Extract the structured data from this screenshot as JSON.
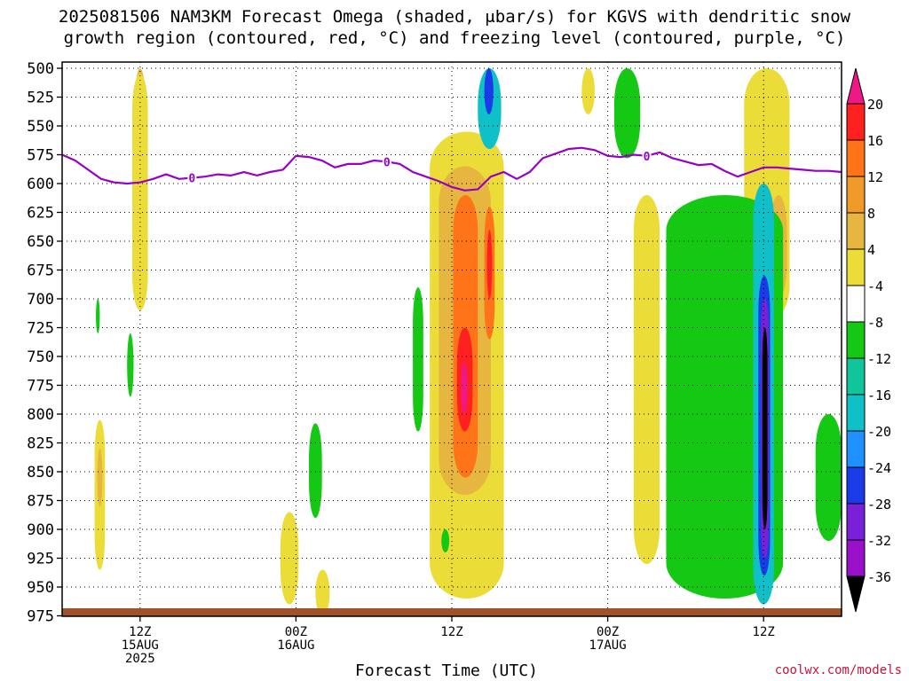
{
  "title_line1": "2025081506 NAM3KM Forecast Omega (shaded, μbar/s) for KGVS with dendritic snow",
  "title_line2": "growth region (contoured, red, °C) and freezing level (contoured, purple, °C)",
  "credit": "coolwx.com/models",
  "chart_data": {
    "type": "heatmap",
    "xlabel": "Forecast Time (UTC)",
    "ylabel": "",
    "x_ticks": [
      {
        "hour": 6,
        "lines": [
          "12Z",
          "15AUG",
          "2025"
        ]
      },
      {
        "hour": 18,
        "lines": [
          "00Z",
          "16AUG"
        ]
      },
      {
        "hour": 30,
        "lines": [
          "12Z"
        ]
      },
      {
        "hour": 42,
        "lines": [
          "00Z",
          "17AUG"
        ]
      },
      {
        "hour": 54,
        "lines": [
          "12Z"
        ]
      }
    ],
    "x_range_hours": [
      0,
      60
    ],
    "y_ticks": [
      500,
      525,
      550,
      575,
      600,
      625,
      650,
      675,
      700,
      725,
      750,
      775,
      800,
      825,
      850,
      875,
      900,
      925,
      950,
      975
    ],
    "y_range_hpa": [
      500,
      987
    ],
    "grid": true,
    "colorbar": {
      "labels": [
        "20",
        "16",
        "12",
        "8",
        "4",
        "-4",
        "-8",
        "-12",
        "-16",
        "-20",
        "-24",
        "-28",
        "-32",
        "-36"
      ],
      "colors": [
        "#ff2020",
        "#ff7418",
        "#f09a2a",
        "#e6b640",
        "#ecdc38",
        "#ffffff",
        "#14c814",
        "#12c49a",
        "#10c0c8",
        "#1e90ff",
        "#1a3ce8",
        "#7a20d8",
        "#9a10c8",
        "#a8a8a8"
      ],
      "top_cap_color": "#f01887",
      "bottom_cap_color": "#000000"
    },
    "freezing_level": {
      "label": "0",
      "color": "#9600c8",
      "hours": [
        0,
        1,
        2,
        3,
        4,
        5,
        6,
        7,
        8,
        9,
        10,
        11,
        12,
        13,
        14,
        15,
        16,
        17,
        18,
        19,
        20,
        21,
        22,
        23,
        24,
        25,
        26,
        27,
        28,
        29,
        30,
        31,
        32,
        33,
        34,
        35,
        36,
        37,
        38,
        39,
        40,
        41,
        42,
        43,
        44,
        45,
        46,
        47,
        48,
        49,
        50,
        51,
        52,
        53,
        54,
        55,
        56,
        57,
        58,
        59,
        60
      ],
      "pressure": [
        575,
        580,
        588,
        596,
        599,
        600,
        599,
        596,
        592,
        596,
        595,
        594,
        592,
        593,
        590,
        593,
        590,
        588,
        576,
        577,
        580,
        586,
        583,
        583,
        580,
        581,
        583,
        590,
        594,
        598,
        603,
        606,
        605,
        594,
        590,
        596,
        590,
        578,
        574,
        570,
        569,
        571,
        576,
        577,
        575,
        576,
        573,
        578,
        581,
        584,
        583,
        589,
        594,
        590,
        586,
        586,
        587,
        588,
        589,
        589,
        590
      ]
    },
    "omega_features": [
      {
        "value": 8,
        "x_hours": [
          5.6,
          6.4
        ],
        "p_top": 500,
        "p_bottom": 700
      },
      {
        "value": 4,
        "x_hours": [
          5.4,
          6.6
        ],
        "p_top": 505,
        "p_bottom": 710
      },
      {
        "value": 4,
        "x_hours": [
          2.5,
          3.3
        ],
        "p_top": 805,
        "p_bottom": 935
      },
      {
        "value": 8,
        "x_hours": [
          2.7,
          3.1
        ],
        "p_top": 830,
        "p_bottom": 880
      },
      {
        "value": -4,
        "x_hours": [
          2.6,
          2.9
        ],
        "p_top": 700,
        "p_bottom": 730
      },
      {
        "value": -4,
        "x_hours": [
          5.0,
          5.5
        ],
        "p_top": 730,
        "p_bottom": 785
      },
      {
        "value": 4,
        "x_hours": [
          16.8,
          18.2
        ],
        "p_top": 885,
        "p_bottom": 965
      },
      {
        "value": -4,
        "x_hours": [
          19.0,
          20.0
        ],
        "p_top": 808,
        "p_bottom": 890
      },
      {
        "value": 4,
        "x_hours": [
          19.5,
          20.6
        ],
        "p_top": 935,
        "p_bottom": 975
      },
      {
        "value": -4,
        "x_hours": [
          27.0,
          27.8
        ],
        "p_top": 690,
        "p_bottom": 815
      },
      {
        "value": 4,
        "x_hours": [
          28.3,
          34.0
        ],
        "p_top": 555,
        "p_bottom": 960
      },
      {
        "value": 8,
        "x_hours": [
          29.0,
          33.0
        ],
        "p_top": 585,
        "p_bottom": 870
      },
      {
        "value": 12,
        "x_hours": [
          30.1,
          32.0
        ],
        "p_top": 610,
        "p_bottom": 855
      },
      {
        "value": 16,
        "x_hours": [
          30.4,
          31.6
        ],
        "p_top": 725,
        "p_bottom": 815
      },
      {
        "value": 20,
        "x_hours": [
          30.7,
          31.2
        ],
        "p_top": 755,
        "p_bottom": 800
      },
      {
        "value": 12,
        "x_hours": [
          32.5,
          33.3
        ],
        "p_top": 620,
        "p_bottom": 735
      },
      {
        "value": 16,
        "x_hours": [
          32.7,
          33.1
        ],
        "p_top": 640,
        "p_bottom": 700
      },
      {
        "value": -12,
        "x_hours": [
          32.0,
          33.8
        ],
        "p_top": 500,
        "p_bottom": 570
      },
      {
        "value": -20,
        "x_hours": [
          32.5,
          33.2
        ],
        "p_top": 500,
        "p_bottom": 540
      },
      {
        "value": -4,
        "x_hours": [
          29.2,
          29.8
        ],
        "p_top": 900,
        "p_bottom": 920
      },
      {
        "value": -4,
        "x_hours": [
          42.5,
          44.5
        ],
        "p_top": 500,
        "p_bottom": 578
      },
      {
        "value": 4,
        "x_hours": [
          40.0,
          41.0
        ],
        "p_top": 500,
        "p_bottom": 540
      },
      {
        "value": 4,
        "x_hours": [
          44.0,
          46.0
        ],
        "p_top": 610,
        "p_bottom": 930
      },
      {
        "value": 4,
        "x_hours": [
          52.5,
          56.0
        ],
        "p_top": 500,
        "p_bottom": 720
      },
      {
        "value": 8,
        "x_hours": [
          54.5,
          55.8
        ],
        "p_top": 610,
        "p_bottom": 700
      },
      {
        "value": -4,
        "x_hours": [
          46.5,
          55.5
        ],
        "p_top": 610,
        "p_bottom": 960
      },
      {
        "value": -12,
        "x_hours": [
          53.2,
          54.8
        ],
        "p_top": 600,
        "p_bottom": 965
      },
      {
        "value": -20,
        "x_hours": [
          53.6,
          54.5
        ],
        "p_top": 680,
        "p_bottom": 940
      },
      {
        "value": -28,
        "x_hours": [
          53.8,
          54.4
        ],
        "p_top": 700,
        "p_bottom": 925
      },
      {
        "value": -36,
        "x_hours": [
          53.9,
          54.3
        ],
        "p_top": 725,
        "p_bottom": 900
      },
      {
        "value": -4,
        "x_hours": [
          58.0,
          60.0
        ],
        "p_top": 800,
        "p_bottom": 910
      }
    ]
  }
}
